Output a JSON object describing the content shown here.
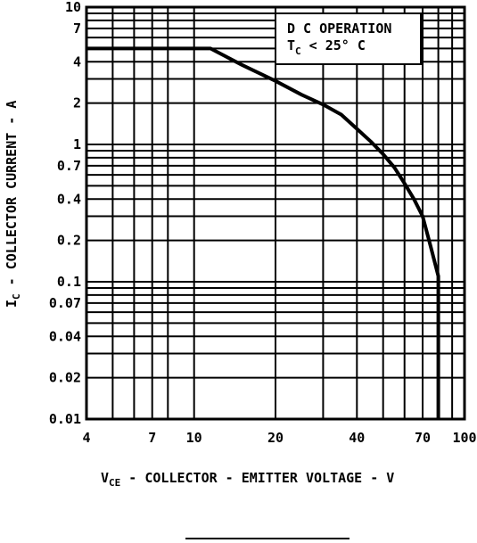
{
  "chart_data": {
    "type": "line",
    "x_scale": "log",
    "y_scale": "log",
    "xlim": [
      4,
      100
    ],
    "ylim": [
      0.01,
      10
    ],
    "grid": true,
    "x_ticks": [
      4,
      7,
      10,
      20,
      40,
      70,
      100
    ],
    "x_tick_labels": [
      "4",
      "7",
      "10",
      "20",
      "40",
      "70",
      "100"
    ],
    "y_ticks": [
      10,
      7,
      4,
      2,
      1,
      0.7,
      0.4,
      0.2,
      0.1,
      0.07,
      0.04,
      0.02,
      0.01
    ],
    "y_tick_labels": [
      "10",
      "7",
      "4",
      "2",
      "1",
      "0.7",
      "0.4",
      "0.2",
      "0.1",
      "0.07",
      "0.04",
      "0.02",
      "0.01"
    ],
    "x_gridlines": [
      4,
      5,
      6,
      7,
      8,
      10,
      20,
      30,
      40,
      50,
      60,
      70,
      80,
      90,
      100
    ],
    "y_gridlines": [
      0.01,
      0.02,
      0.03,
      0.04,
      0.05,
      0.06,
      0.07,
      0.08,
      0.09,
      0.1,
      0.2,
      0.3,
      0.4,
      0.5,
      0.6,
      0.7,
      0.8,
      0.9,
      1,
      2,
      3,
      4,
      5,
      6,
      7,
      8,
      9,
      10
    ],
    "xlabel": {
      "main": "V",
      "sub": "CE",
      "rest": " - COLLECTOR - EMITTER VOLTAGE - V"
    },
    "ylabel": {
      "main": "I",
      "sub": "C",
      "rest": " - COLLECTOR CURRENT - A"
    },
    "annotation": {
      "line1": "D C OPERATION",
      "line2_main": "T",
      "line2_sub": "C",
      "line2_rest": " < 25° C"
    },
    "series": [
      {
        "x": [
          4,
          11.5,
          15,
          20,
          25,
          30,
          35,
          40,
          45,
          50,
          55,
          60,
          65,
          70,
          75,
          80,
          80,
          80
        ],
        "y": [
          5,
          5,
          3.8,
          2.9,
          2.3,
          1.95,
          1.65,
          1.3,
          1.05,
          0.85,
          0.68,
          0.52,
          0.4,
          0.3,
          0.18,
          0.11,
          0.02,
          0.01
        ]
      }
    ]
  }
}
